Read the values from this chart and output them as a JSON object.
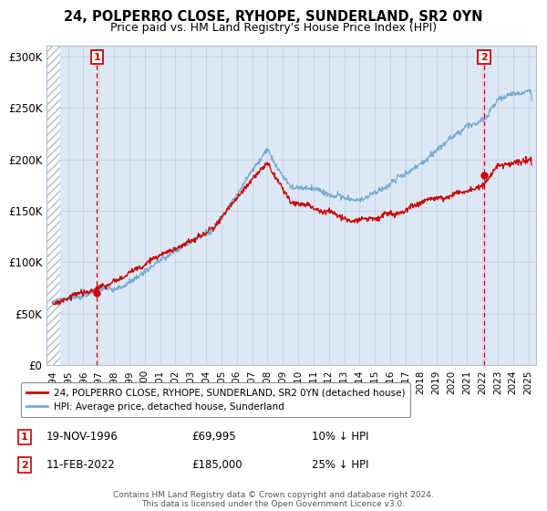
{
  "title": "24, POLPERRO CLOSE, RYHOPE, SUNDERLAND, SR2 0YN",
  "subtitle": "Price paid vs. HM Land Registry's House Price Index (HPI)",
  "ylim": [
    0,
    310000
  ],
  "xlim_start": 1993.6,
  "xlim_end": 2025.5,
  "yticks": [
    0,
    50000,
    100000,
    150000,
    200000,
    250000,
    300000
  ],
  "ytick_labels": [
    "£0",
    "£50K",
    "£100K",
    "£150K",
    "£200K",
    "£250K",
    "£300K"
  ],
  "sale1_date": 1996.88,
  "sale1_price": 69995,
  "sale1_label": "1",
  "sale1_text": "19-NOV-1996",
  "sale1_amount": "£69,995",
  "sale1_hpi": "10% ↓ HPI",
  "sale2_date": 2022.12,
  "sale2_price": 185000,
  "sale2_label": "2",
  "sale2_text": "11-FEB-2022",
  "sale2_amount": "£185,000",
  "sale2_hpi": "25% ↓ HPI",
  "legend_label1": "24, POLPERRO CLOSE, RYHOPE, SUNDERLAND, SR2 0YN (detached house)",
  "legend_label2": "HPI: Average price, detached house, Sunderland",
  "footer": "Contains HM Land Registry data © Crown copyright and database right 2024.\nThis data is licensed under the Open Government Licence v3.0.",
  "line1_color": "#cc0000",
  "line2_color": "#7aabcf",
  "background_color": "#dce9f5",
  "hatch_color": "#aabbd0",
  "grid_color": "#c0cdd8",
  "sale_marker_color": "#cc0000",
  "vline_color": "#cc0000",
  "box_color": "#cc0000",
  "hatch_start": 1993.6,
  "hatch_end": 1994.5,
  "data_start": 1994.0
}
